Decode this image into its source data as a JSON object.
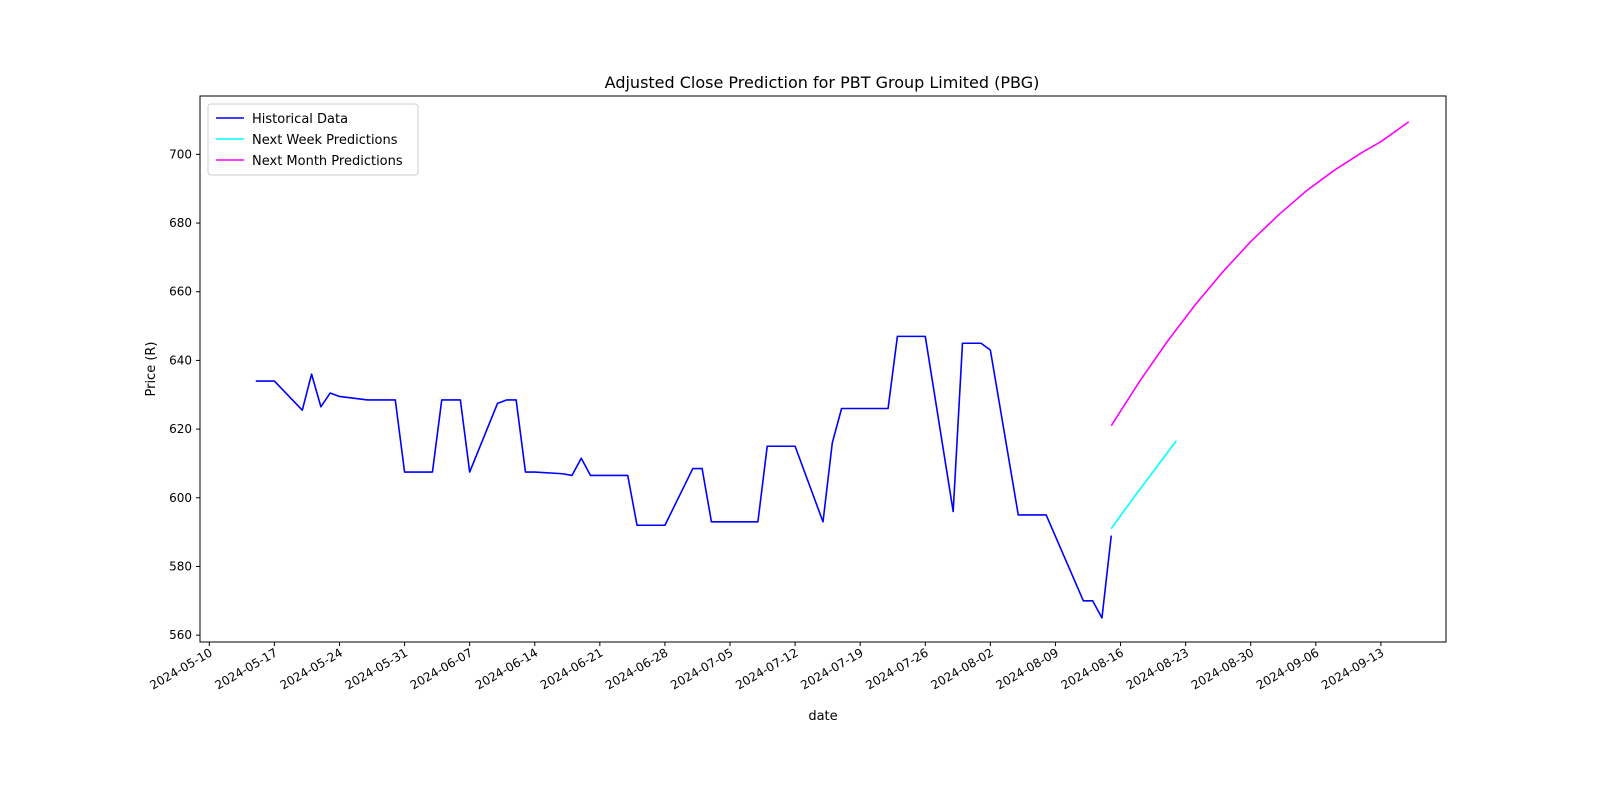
{
  "chart_data": {
    "type": "line",
    "title": "Adjusted Close Prediction for PBT Group Limited (PBG)",
    "xlabel": "date",
    "ylabel": "Price (R)",
    "x_axis_type": "date",
    "xlim": [
      "2024-05-09",
      "2024-09-20"
    ],
    "ylim": [
      558,
      717
    ],
    "x_ticks": [
      "2024-05-10",
      "2024-05-17",
      "2024-05-24",
      "2024-05-31",
      "2024-06-07",
      "2024-06-14",
      "2024-06-21",
      "2024-06-28",
      "2024-07-05",
      "2024-07-12",
      "2024-07-19",
      "2024-07-26",
      "2024-08-02",
      "2024-08-09",
      "2024-08-16",
      "2024-08-23",
      "2024-08-30",
      "2024-09-06",
      "2024-09-13"
    ],
    "y_ticks": [
      560,
      580,
      600,
      620,
      640,
      660,
      680,
      700
    ],
    "grid": false,
    "legend_position": "top-left",
    "series": [
      {
        "name": "Historical Data",
        "color": "#0000ff",
        "points": [
          [
            "2024-05-15",
            634.0
          ],
          [
            "2024-05-17",
            634.0
          ],
          [
            "2024-05-20",
            625.5
          ],
          [
            "2024-05-21",
            636.0
          ],
          [
            "2024-05-22",
            626.5
          ],
          [
            "2024-05-23",
            630.5
          ],
          [
            "2024-05-24",
            629.5
          ],
          [
            "2024-05-27",
            628.5
          ],
          [
            "2024-05-28",
            628.5
          ],
          [
            "2024-05-29",
            628.5
          ],
          [
            "2024-05-30",
            628.5
          ],
          [
            "2024-05-31",
            607.5
          ],
          [
            "2024-06-03",
            607.5
          ],
          [
            "2024-06-04",
            628.5
          ],
          [
            "2024-06-05",
            628.5
          ],
          [
            "2024-06-06",
            628.5
          ],
          [
            "2024-06-07",
            607.5
          ],
          [
            "2024-06-10",
            627.5
          ],
          [
            "2024-06-11",
            628.5
          ],
          [
            "2024-06-12",
            628.5
          ],
          [
            "2024-06-13",
            607.5
          ],
          [
            "2024-06-14",
            607.5
          ],
          [
            "2024-06-17",
            607.0
          ],
          [
            "2024-06-18",
            606.5
          ],
          [
            "2024-06-19",
            611.5
          ],
          [
            "2024-06-20",
            606.5
          ],
          [
            "2024-06-21",
            606.5
          ],
          [
            "2024-06-24",
            606.5
          ],
          [
            "2024-06-25",
            592.0
          ],
          [
            "2024-06-26",
            592.0
          ],
          [
            "2024-06-27",
            592.0
          ],
          [
            "2024-06-28",
            592.0
          ],
          [
            "2024-07-01",
            608.5
          ],
          [
            "2024-07-02",
            608.5
          ],
          [
            "2024-07-03",
            593.0
          ],
          [
            "2024-07-04",
            593.0
          ],
          [
            "2024-07-05",
            593.0
          ],
          [
            "2024-07-08",
            593.0
          ],
          [
            "2024-07-09",
            615.0
          ],
          [
            "2024-07-10",
            615.0
          ],
          [
            "2024-07-11",
            615.0
          ],
          [
            "2024-07-12",
            615.0
          ],
          [
            "2024-07-15",
            593.0
          ],
          [
            "2024-07-16",
            616.0
          ],
          [
            "2024-07-17",
            626.0
          ],
          [
            "2024-07-18",
            626.0
          ],
          [
            "2024-07-19",
            626.0
          ],
          [
            "2024-07-22",
            626.0
          ],
          [
            "2024-07-23",
            647.0
          ],
          [
            "2024-07-24",
            647.0
          ],
          [
            "2024-07-25",
            647.0
          ],
          [
            "2024-07-26",
            647.0
          ],
          [
            "2024-07-29",
            596.0
          ],
          [
            "2024-07-30",
            645.0
          ],
          [
            "2024-07-31",
            645.0
          ],
          [
            "2024-08-01",
            645.0
          ],
          [
            "2024-08-02",
            643.0
          ],
          [
            "2024-08-05",
            595.0
          ],
          [
            "2024-08-06",
            595.0
          ],
          [
            "2024-08-07",
            595.0
          ],
          [
            "2024-08-08",
            595.0
          ],
          [
            "2024-08-12",
            570.0
          ],
          [
            "2024-08-13",
            570.0
          ],
          [
            "2024-08-14",
            565.0
          ],
          [
            "2024-08-15",
            589.0
          ]
        ]
      },
      {
        "name": "Next Week Predictions",
        "color": "#00ffff",
        "points": [
          [
            "2024-08-15",
            591.0
          ],
          [
            "2024-08-16",
            594.8
          ],
          [
            "2024-08-17",
            598.5
          ],
          [
            "2024-08-18",
            602.2
          ],
          [
            "2024-08-19",
            605.8
          ],
          [
            "2024-08-20",
            609.4
          ],
          [
            "2024-08-21",
            613.0
          ],
          [
            "2024-08-22",
            616.6
          ]
        ]
      },
      {
        "name": "Next Month Predictions",
        "color": "#ff00ff",
        "points": [
          [
            "2024-08-15",
            621.0
          ],
          [
            "2024-08-18",
            633.7
          ],
          [
            "2024-08-21",
            645.4
          ],
          [
            "2024-08-24",
            656.1
          ],
          [
            "2024-08-27",
            665.8
          ],
          [
            "2024-08-30",
            674.6
          ],
          [
            "2024-09-02",
            682.4
          ],
          [
            "2024-09-05",
            689.4
          ],
          [
            "2024-09-08",
            695.4
          ],
          [
            "2024-09-11",
            700.6
          ],
          [
            "2024-09-13",
            703.7
          ],
          [
            "2024-09-16",
            709.5
          ]
        ]
      }
    ]
  }
}
